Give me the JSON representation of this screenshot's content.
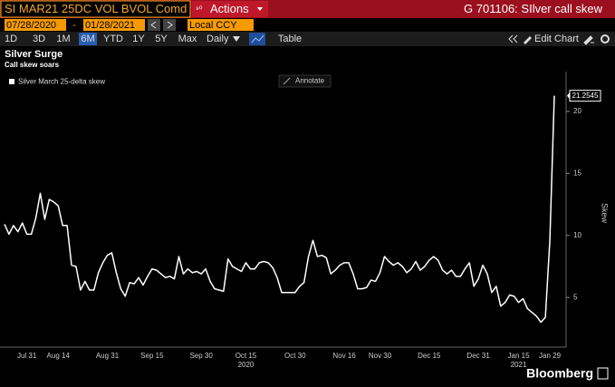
{
  "header": {
    "security": "SI MAR21 25DC VOL BVOL Comd",
    "actions": "Actions",
    "title": "G 701106: SIlver call skew"
  },
  "range_bar": {
    "start": "07/28/2020",
    "separator": "-",
    "end": "01/28/2021",
    "currency": "Local CCY"
  },
  "toolbar": {
    "periods": [
      "1D",
      "3D",
      "1M",
      "6M",
      "YTD",
      "1Y",
      "5Y",
      "Max"
    ],
    "selected": "6M",
    "frequency": "Daily",
    "table": "Table",
    "edit": "Edit Chart"
  },
  "chart_data": {
    "type": "line",
    "title": "Silver Surge",
    "subtitle": "Call skew soars",
    "annotate": "Annotate",
    "y_label": "Skew",
    "brand": "Bloomberg",
    "categories": [
      null,
      null,
      null,
      null,
      null,
      "Jul 31",
      null,
      null,
      null,
      null,
      null,
      null,
      "Aug 14",
      null,
      null,
      null,
      null,
      null,
      null,
      null,
      null,
      null,
      null,
      "Aug 31",
      null,
      null,
      null,
      null,
      null,
      null,
      null,
      null,
      null,
      "Sep 15",
      null,
      null,
      null,
      null,
      null,
      null,
      null,
      null,
      null,
      null,
      "Sep 30",
      null,
      null,
      null,
      null,
      null,
      null,
      null,
      null,
      null,
      "Oct 15",
      null,
      null,
      null,
      null,
      null,
      null,
      null,
      null,
      null,
      null,
      "Oct 30",
      null,
      null,
      null,
      null,
      null,
      null,
      null,
      null,
      null,
      null,
      "Nov 16",
      null,
      null,
      null,
      null,
      null,
      null,
      null,
      "Nov 30",
      null,
      null,
      null,
      null,
      null,
      null,
      null,
      null,
      null,
      null,
      "Dec 15",
      null,
      null,
      null,
      null,
      null,
      null,
      null,
      null,
      null,
      null,
      "Dec 31",
      null,
      null,
      null,
      null,
      null,
      null,
      null,
      null,
      "Jan 15",
      null,
      null,
      null,
      null,
      null,
      null,
      "Jan 29",
      null
    ],
    "year_labels": [
      {
        "label": "2020",
        "index": 54
      },
      {
        "label": "2021",
        "index": 115
      }
    ],
    "series": [
      {
        "name": "Silver March 25-delta skew",
        "color": "#ffffff",
        "values": [
          10.9,
          10.1,
          10.8,
          10.3,
          11.0,
          10.1,
          10.1,
          11.4,
          13.4,
          11.3,
          12.9,
          12.7,
          12.4,
          10.8,
          10.8,
          7.6,
          7.5,
          5.6,
          6.3,
          5.6,
          5.6,
          7.0,
          7.8,
          8.4,
          8.6,
          7.0,
          5.7,
          5.1,
          6.2,
          6.1,
          6.6,
          6.0,
          6.7,
          7.3,
          7.2,
          6.9,
          6.6,
          6.7,
          6.5,
          8.3,
          6.9,
          7.3,
          7.0,
          7.1,
          6.9,
          7.3,
          6.3,
          5.7,
          5.6,
          5.5,
          8.1,
          7.5,
          7.3,
          7.1,
          7.8,
          7.3,
          7.3,
          7.8,
          7.9,
          7.8,
          7.4,
          6.6,
          5.4,
          5.4,
          5.4,
          5.4,
          5.9,
          6.2,
          8.3,
          9.6,
          8.3,
          8.4,
          8.2,
          6.9,
          7.2,
          7.6,
          7.8,
          7.8,
          6.9,
          5.7,
          5.7,
          5.8,
          6.4,
          6.3,
          7.0,
          8.3,
          7.9,
          7.6,
          7.8,
          7.5,
          7.0,
          7.3,
          7.9,
          7.2,
          7.5,
          8.0,
          8.3,
          8.0,
          7.2,
          6.9,
          7.2,
          6.7,
          6.7,
          7.3,
          7.8,
          5.9,
          6.5,
          7.6,
          6.9,
          5.4,
          5.9,
          4.3,
          4.6,
          5.2,
          5.1,
          4.6,
          4.9,
          4.1,
          3.8,
          3.5,
          3.0,
          3.4,
          9.6,
          21.2545
        ]
      }
    ],
    "ylim": [
      1,
      23.2
    ],
    "yticks": [
      5,
      10,
      15,
      20
    ],
    "grid": false
  }
}
